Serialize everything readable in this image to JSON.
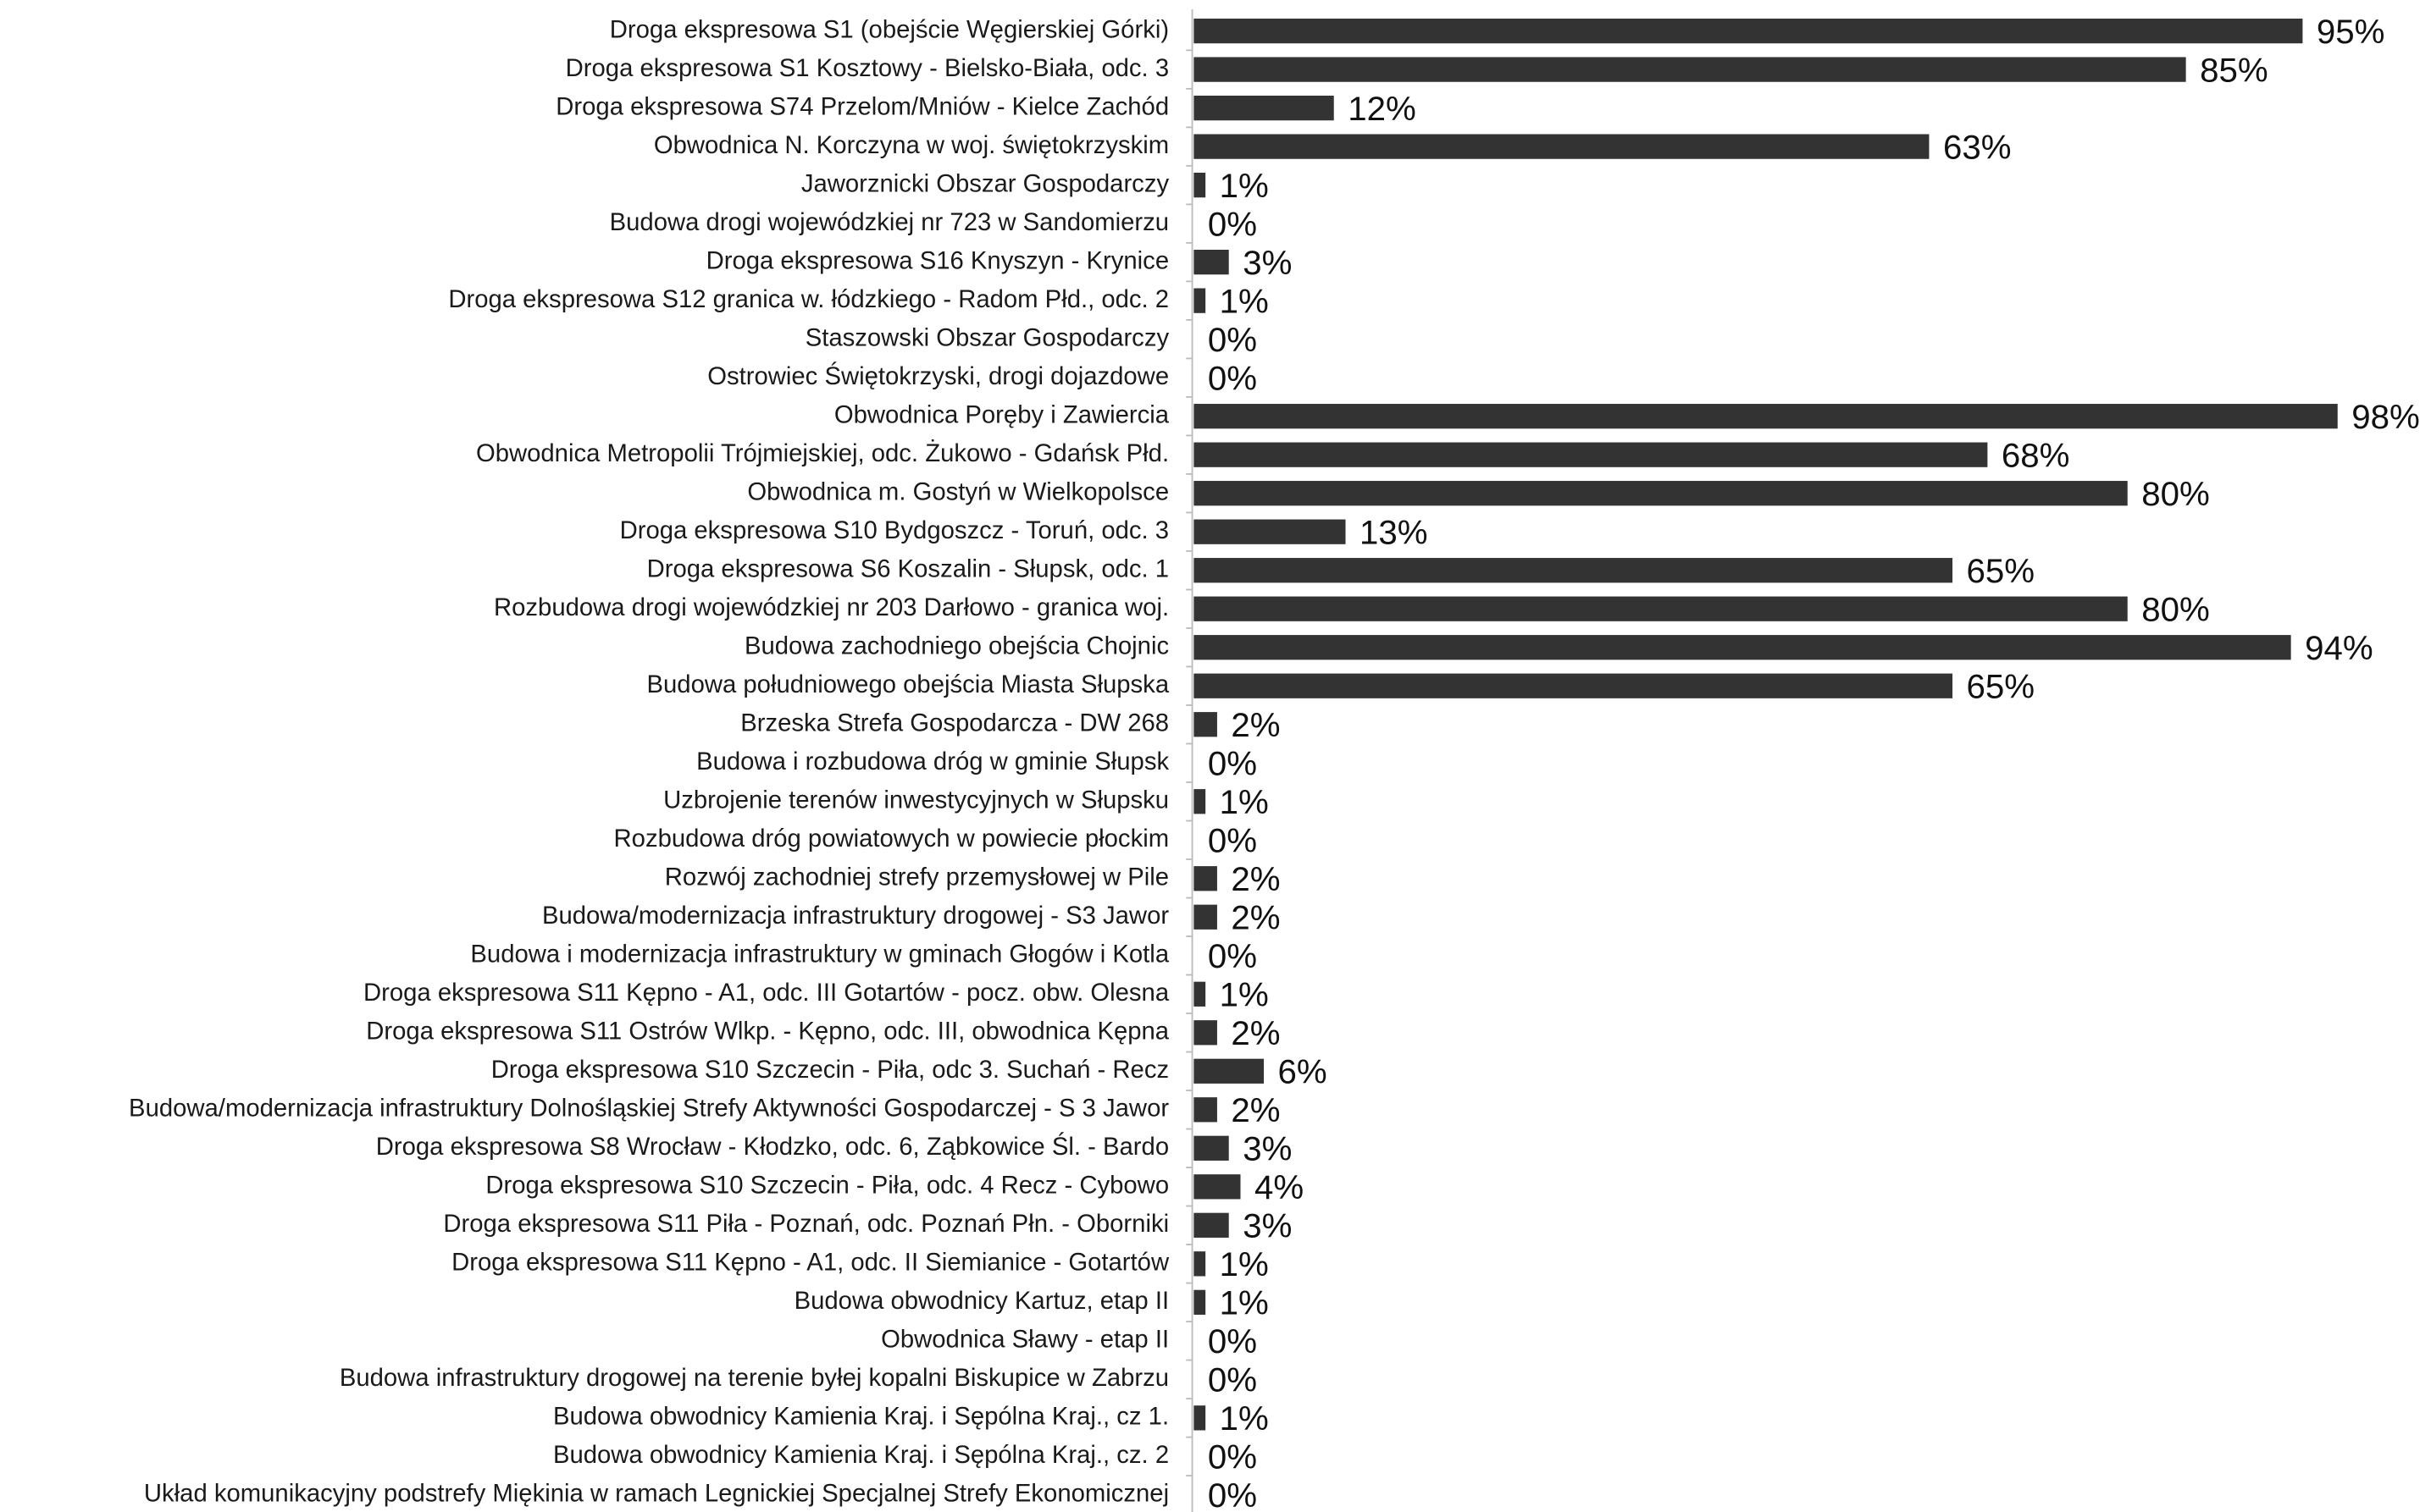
{
  "chart_data": {
    "type": "hbar",
    "color": "#333333",
    "categories": [
      "Droga ekspresowa S1 (obejście Węgierskiej Górki)",
      "Droga ekspresowa S1 Kosztowy - Bielsko-Biała, odc. 3",
      "Droga ekspresowa S74 Przelom/Mniów - Kielce Zachód",
      "Obwodnica N. Korczyna w woj. świętokrzyskim",
      "Jaworznicki Obszar Gospodarczy",
      "Budowa drogi wojewódzkiej nr 723 w Sandomierzu",
      "Droga ekspresowa S16 Knyszyn - Krynice",
      "Droga ekspresowa S12 granica w. łódzkiego - Radom Płd., odc. 2",
      "Staszowski Obszar Gospodarczy",
      "Ostrowiec Świętokrzyski, drogi dojazdowe",
      "Obwodnica Poręby i Zawiercia",
      "Obwodnica Metropolii Trójmiejskiej, odc. Żukowo - Gdańsk Płd.",
      "Obwodnica m. Gostyń w Wielkopolsce",
      "Droga ekspresowa S10 Bydgoszcz - Toruń, odc. 3",
      "Droga ekspresowa S6 Koszalin - Słupsk, odc. 1",
      "Rozbudowa drogi wojewódzkiej nr 203 Darłowo - granica woj.",
      "Budowa zachodniego obejścia Chojnic",
      "Budowa południowego obejścia Miasta Słupska",
      "Brzeska Strefa Gospodarcza - DW 268",
      "Budowa i rozbudowa dróg w gminie Słupsk",
      "Uzbrojenie terenów inwestycyjnych w Słupsku",
      "Rozbudowa dróg powiatowych w powiecie płockim",
      "Rozwój zachodniej strefy przemysłowej w Pile",
      "Budowa/modernizacja infrastruktury drogowej - S3 Jawor",
      "Budowa i modernizacja infrastruktury w gminach Głogów i Kotla",
      "Droga ekspresowa S11 Kępno - A1, odc. III Gotartów - pocz. obw. Olesna",
      "Droga ekspresowa S11 Ostrów Wlkp. - Kępno, odc. III, obwodnica Kępna",
      "Droga ekspresowa S10 Szczecin - Piła, odc 3. Suchań - Recz",
      "Budowa/modernizacja infrastruktury Dolnośląskiej Strefy Aktywności Gospodarczej - S 3 Jawor",
      "Droga ekspresowa S8 Wrocław - Kłodzko, odc. 6, Ząbkowice Śl. - Bardo",
      "Droga ekspresowa S10 Szczecin - Piła, odc. 4 Recz - Cybowo",
      "Droga ekspresowa S11 Piła - Poznań, odc. Poznań Płn. - Oborniki",
      "Droga ekspresowa S11 Kępno - A1, odc. II Siemianice - Gotartów",
      "Budowa obwodnicy Kartuz, etap II",
      "Obwodnica Sławy - etap II",
      "Budowa infrastruktury drogowej na terenie byłej kopalni Biskupice w Zabrzu",
      "Budowa obwodnicy Kamienia Kraj. i Sępólna Kraj., cz 1.",
      "Budowa obwodnicy Kamienia Kraj. i Sępólna Kraj., cz. 2",
      "Układ komunikacyjny podstrefy Miękinia w ramach Legnickiej Specjalnej Strefy Ekonomicznej"
    ],
    "values": [
      95,
      85,
      12,
      63,
      1,
      0,
      3,
      1,
      0,
      0,
      98,
      68,
      80,
      13,
      65,
      80,
      94,
      65,
      2,
      0,
      1,
      0,
      2,
      2,
      0,
      1,
      2,
      6,
      2,
      3,
      4,
      3,
      1,
      1,
      0,
      0,
      1,
      0,
      0
    ],
    "value_labels": [
      "95%",
      "85%",
      "12%",
      "63%",
      "1%",
      "0%",
      "3%",
      "1%",
      "0%",
      "0%",
      "98%",
      "68%",
      "80%",
      "13%",
      "65%",
      "80%",
      "94%",
      "65%",
      "2%",
      "0%",
      "1%",
      "0%",
      "2%",
      "2%",
      "0%",
      "1%",
      "2%",
      "6%",
      "2%",
      "3%",
      "4%",
      "3%",
      "1%",
      "1%",
      "0%",
      "0%",
      "1%",
      "0%",
      "0%"
    ]
  }
}
